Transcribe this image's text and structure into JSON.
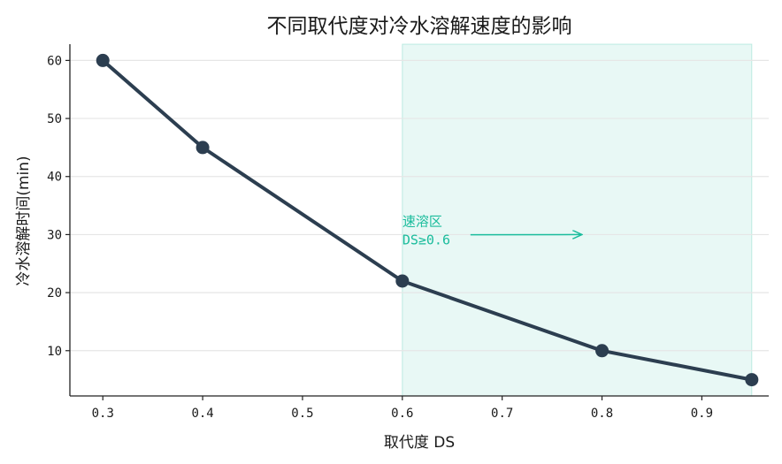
{
  "chart_data": {
    "type": "line",
    "title": "不同取代度对冷水溶解速度的影响",
    "xlabel": "取代度 DS",
    "ylabel": "冷水溶解时间(min)",
    "x": [
      0.3,
      0.4,
      0.6,
      0.8,
      0.95
    ],
    "series": [
      {
        "values": [
          60,
          45,
          22,
          10,
          5
        ]
      }
    ],
    "xlim": [
      0.267,
      0.967
    ],
    "ylim": [
      2.2,
      62.8
    ],
    "xticks": [
      0.3,
      0.4,
      0.5,
      0.6,
      0.7,
      0.8,
      0.9
    ],
    "xtick_labels": [
      "0.3",
      "0.4",
      "0.5",
      "0.6",
      "0.7",
      "0.8",
      "0.9"
    ],
    "yticks": [
      10,
      20,
      30,
      40,
      50,
      60
    ],
    "ytick_labels": [
      "10",
      "20",
      "30",
      "40",
      "50",
      "60"
    ],
    "grid": "horizontal",
    "shaded_region": {
      "x_start": 0.6,
      "x_end": 0.95
    },
    "annotation": {
      "line1": "速溶区",
      "line2": "DS≥0.6",
      "text_at": [
        0.6,
        31.5
      ],
      "arrow_to": [
        0.78,
        30
      ]
    },
    "colors": {
      "line": "#2c3e50",
      "region": "#1abc9c",
      "annotation": "#1abc9c",
      "grid": "#e6e6e6"
    }
  }
}
